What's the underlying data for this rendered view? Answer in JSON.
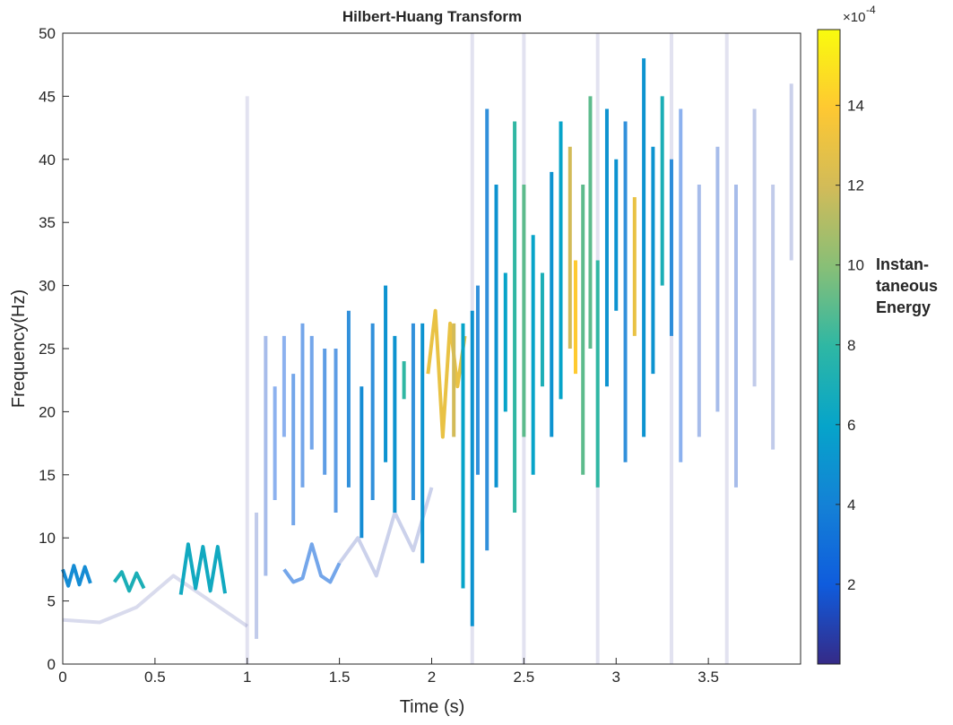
{
  "chart_data": {
    "type": "hht",
    "title": "Hilbert-Huang Transform",
    "x_label": "Time (s)",
    "y_label": "Frequency(Hz)",
    "xlim": [
      0,
      4
    ],
    "ylim": [
      0,
      50
    ],
    "xticks": [
      0,
      0.5,
      1,
      1.5,
      2,
      2.5,
      3,
      3.5
    ],
    "yticks": [
      0,
      5,
      10,
      15,
      20,
      25,
      30,
      35,
      40,
      45,
      50
    ],
    "colorbar": {
      "clim": [
        0,
        15.9
      ],
      "ticks": [
        2,
        4,
        6,
        8,
        10,
        12,
        14
      ],
      "exponent_base": "×10",
      "exponent_power": "-4",
      "label": [
        "Instan-",
        "taneous",
        "Energy"
      ],
      "colormap": [
        "#352a87",
        "#0f5cdd",
        "#1481d6",
        "#06a4ca",
        "#2eb7a4",
        "#87bf77",
        "#d1bb59",
        "#fec832",
        "#f9fb0e"
      ]
    },
    "series": [
      {
        "x": [
          1.0,
          1.0
        ],
        "y": [
          0,
          45
        ],
        "energy": 0.3
      },
      {
        "x": [
          2.22,
          2.22
        ],
        "y": [
          0,
          50
        ],
        "energy": 0.3
      },
      {
        "x": [
          2.5,
          2.5
        ],
        "y": [
          0,
          50
        ],
        "energy": 0.3
      },
      {
        "x": [
          2.9,
          2.9
        ],
        "y": [
          0,
          50
        ],
        "energy": 0.3
      },
      {
        "x": [
          3.3,
          3.3
        ],
        "y": [
          0,
          50
        ],
        "energy": 0.3
      },
      {
        "x": [
          3.6,
          3.6
        ],
        "y": [
          0,
          50
        ],
        "energy": 0.3
      },
      {
        "x": [
          0,
          0.2,
          0.4,
          0.6,
          0.8,
          1.0
        ],
        "y": [
          3.5,
          3.3,
          4.5,
          7,
          5,
          3
        ],
        "energy": 0.5
      },
      {
        "x": [
          1.5,
          1.6,
          1.7,
          1.8,
          1.9,
          2.0
        ],
        "y": [
          8,
          10,
          7,
          12,
          9,
          14
        ],
        "energy": 0.8
      },
      {
        "x": [
          0,
          0.03,
          0.06,
          0.09,
          0.12,
          0.15
        ],
        "y": [
          7.5,
          6.2,
          7.8,
          6.3,
          7.7,
          6.4
        ],
        "energy": 4.5
      },
      {
        "x": [
          0.28,
          0.32,
          0.36,
          0.4,
          0.44
        ],
        "y": [
          6.5,
          7.3,
          5.8,
          7.2,
          6.0
        ],
        "energy": 7
      },
      {
        "x": [
          0.64,
          0.68,
          0.72,
          0.76,
          0.8,
          0.84,
          0.88
        ],
        "y": [
          5.5,
          9.5,
          6,
          9.3,
          5.8,
          9.3,
          5.6
        ],
        "energy": 6.5
      },
      {
        "x": [
          1.2,
          1.25,
          1.3,
          1.35,
          1.4,
          1.45,
          1.5
        ],
        "y": [
          7.5,
          6.5,
          6.8,
          9.5,
          7,
          6.5,
          8
        ],
        "energy": 2.5
      },
      {
        "x": [
          1.05,
          1.05
        ],
        "y": [
          2,
          12
        ],
        "energy": 1
      },
      {
        "x": [
          1.1,
          1.1
        ],
        "y": [
          7,
          26
        ],
        "energy": 1.5
      },
      {
        "x": [
          1.15,
          1.15
        ],
        "y": [
          13,
          22
        ],
        "energy": 2
      },
      {
        "x": [
          1.2,
          1.2
        ],
        "y": [
          18,
          26
        ],
        "energy": 2
      },
      {
        "x": [
          1.25,
          1.25
        ],
        "y": [
          11,
          23
        ],
        "energy": 2.5
      },
      {
        "x": [
          1.3,
          1.3
        ],
        "y": [
          14,
          27
        ],
        "energy": 2.5
      },
      {
        "x": [
          1.35,
          1.35
        ],
        "y": [
          17,
          26
        ],
        "energy": 2.5
      },
      {
        "x": [
          1.42,
          1.42
        ],
        "y": [
          15,
          25
        ],
        "energy": 3
      },
      {
        "x": [
          1.48,
          1.48
        ],
        "y": [
          12,
          25
        ],
        "energy": 3
      },
      {
        "x": [
          1.55,
          1.55
        ],
        "y": [
          14,
          28
        ],
        "energy": 4
      },
      {
        "x": [
          1.62,
          1.62
        ],
        "y": [
          10,
          22
        ],
        "energy": 4.5
      },
      {
        "x": [
          1.68,
          1.68
        ],
        "y": [
          13,
          27
        ],
        "energy": 4
      },
      {
        "x": [
          1.75,
          1.75
        ],
        "y": [
          16,
          30
        ],
        "energy": 5
      },
      {
        "x": [
          1.8,
          1.8
        ],
        "y": [
          12,
          26
        ],
        "energy": 5
      },
      {
        "x": [
          1.85,
          1.85
        ],
        "y": [
          21,
          24
        ],
        "energy": 8
      },
      {
        "x": [
          1.9,
          1.9
        ],
        "y": [
          13,
          27
        ],
        "energy": 4
      },
      {
        "x": [
          1.95,
          1.95
        ],
        "y": [
          8,
          27
        ],
        "energy": 5
      },
      {
        "x": [
          1.98,
          2.02,
          2.06,
          2.1,
          2.14,
          2.18
        ],
        "y": [
          23,
          28,
          18,
          27,
          22,
          26
        ],
        "energy": 13
      },
      {
        "x": [
          2.12,
          2.12
        ],
        "y": [
          18,
          27
        ],
        "energy": 12
      },
      {
        "x": [
          2.17,
          2.17
        ],
        "y": [
          6,
          27
        ],
        "energy": 6
      },
      {
        "x": [
          2.22,
          2.22
        ],
        "y": [
          3,
          28
        ],
        "energy": 5
      },
      {
        "x": [
          2.25,
          2.25
        ],
        "y": [
          15,
          30
        ],
        "energy": 4
      },
      {
        "x": [
          2.3,
          2.3
        ],
        "y": [
          9,
          44
        ],
        "energy": 4
      },
      {
        "x": [
          2.35,
          2.35
        ],
        "y": [
          14,
          38
        ],
        "energy": 5
      },
      {
        "x": [
          2.4,
          2.4
        ],
        "y": [
          20,
          31
        ],
        "energy": 6
      },
      {
        "x": [
          2.45,
          2.45
        ],
        "y": [
          12,
          43
        ],
        "energy": 8
      },
      {
        "x": [
          2.5,
          2.5
        ],
        "y": [
          18,
          38
        ],
        "energy": 9
      },
      {
        "x": [
          2.55,
          2.55
        ],
        "y": [
          15,
          34
        ],
        "energy": 6
      },
      {
        "x": [
          2.6,
          2.6
        ],
        "y": [
          22,
          31
        ],
        "energy": 7
      },
      {
        "x": [
          2.65,
          2.65
        ],
        "y": [
          18,
          39
        ],
        "energy": 5
      },
      {
        "x": [
          2.7,
          2.7
        ],
        "y": [
          21,
          43
        ],
        "energy": 6
      },
      {
        "x": [
          2.75,
          2.75
        ],
        "y": [
          25,
          41
        ],
        "energy": 12
      },
      {
        "x": [
          2.78,
          2.78
        ],
        "y": [
          23,
          32
        ],
        "energy": 14
      },
      {
        "x": [
          2.82,
          2.82
        ],
        "y": [
          15,
          38
        ],
        "energy": 9
      },
      {
        "x": [
          2.86,
          2.86
        ],
        "y": [
          25,
          45
        ],
        "energy": 9
      },
      {
        "x": [
          2.9,
          2.9
        ],
        "y": [
          14,
          32
        ],
        "energy": 8
      },
      {
        "x": [
          2.95,
          2.95
        ],
        "y": [
          22,
          44
        ],
        "energy": 5
      },
      {
        "x": [
          3.0,
          3.0
        ],
        "y": [
          28,
          40
        ],
        "energy": 5
      },
      {
        "x": [
          3.05,
          3.05
        ],
        "y": [
          16,
          43
        ],
        "energy": 4
      },
      {
        "x": [
          3.1,
          3.1
        ],
        "y": [
          26,
          37
        ],
        "energy": 13
      },
      {
        "x": [
          3.15,
          3.15
        ],
        "y": [
          18,
          48
        ],
        "energy": 5
      },
      {
        "x": [
          3.2,
          3.2
        ],
        "y": [
          23,
          41
        ],
        "energy": 5
      },
      {
        "x": [
          3.25,
          3.25
        ],
        "y": [
          30,
          45
        ],
        "energy": 7
      },
      {
        "x": [
          3.3,
          3.3
        ],
        "y": [
          26,
          40
        ],
        "energy": 4
      },
      {
        "x": [
          3.35,
          3.35
        ],
        "y": [
          16,
          44
        ],
        "energy": 2
      },
      {
        "x": [
          3.45,
          3.45
        ],
        "y": [
          18,
          38
        ],
        "energy": 1.5
      },
      {
        "x": [
          3.55,
          3.55
        ],
        "y": [
          20,
          41
        ],
        "energy": 1.5
      },
      {
        "x": [
          3.65,
          3.65
        ],
        "y": [
          14,
          38
        ],
        "energy": 1.5
      },
      {
        "x": [
          3.75,
          3.75
        ],
        "y": [
          22,
          44
        ],
        "energy": 1
      },
      {
        "x": [
          3.85,
          3.85
        ],
        "y": [
          17,
          38
        ],
        "energy": 1
      },
      {
        "x": [
          3.95,
          3.95
        ],
        "y": [
          32,
          46
        ],
        "energy": 0.8
      }
    ]
  }
}
